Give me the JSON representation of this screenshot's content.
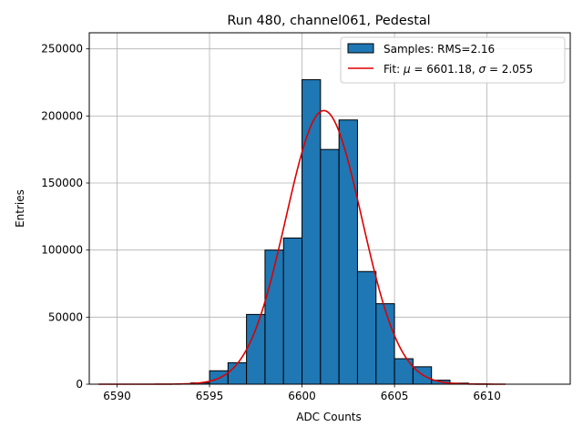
{
  "chart_data": {
    "type": "bar",
    "title": "Run 480, channel061, Pedestal",
    "xlabel": "ADC Counts",
    "ylabel": "Entries",
    "xlim": [
      6588.5,
      6614.5
    ],
    "ylim": [
      0,
      262000
    ],
    "grid": true,
    "legend_position": "top-right",
    "colors": {
      "bars": "#1f77b4",
      "bar_edge": "#000000",
      "fit": "#dd0000",
      "grid": "#b0b0b0"
    },
    "x_ticks": [
      6590,
      6595,
      6600,
      6605,
      6610
    ],
    "x_tick_labels": [
      "6590",
      "6595",
      "6600",
      "6605",
      "6610"
    ],
    "y_ticks": [
      0,
      50000,
      100000,
      150000,
      200000,
      250000
    ],
    "y_tick_labels": [
      "0",
      "50000",
      "100000",
      "150000",
      "200000",
      "250000"
    ],
    "series": [
      {
        "name": "Samples: RMS=2.16",
        "kind": "histogram",
        "bin_width": 1,
        "bin_left_edges": [
          6594,
          6595,
          6596,
          6597,
          6598,
          6599,
          6600,
          6601,
          6602,
          6603,
          6604,
          6605,
          6606,
          6607,
          6608,
          6609
        ],
        "counts": [
          1000,
          10000,
          16000,
          52000,
          100000,
          109000,
          227000,
          175000,
          197000,
          84000,
          60000,
          19000,
          13000,
          3000,
          800,
          200
        ]
      },
      {
        "name": "Fit: $\\mu$ = 6601.18, $\\sigma$ = 2.055",
        "kind": "gaussian_fit",
        "mu": 6601.18,
        "sigma": 2.055,
        "amplitude": 204000,
        "x_range": [
          6589,
          6611
        ]
      }
    ],
    "legend": [
      {
        "label_prefix": "Samples: RMS=2.16",
        "symbol": "patch"
      },
      {
        "label_prefix": "Fit: ",
        "mu_symbol": "μ",
        "mu_text": " = 6601.18, ",
        "sigma_symbol": "σ",
        "sigma_text": " = 2.055",
        "symbol": "line"
      }
    ]
  }
}
